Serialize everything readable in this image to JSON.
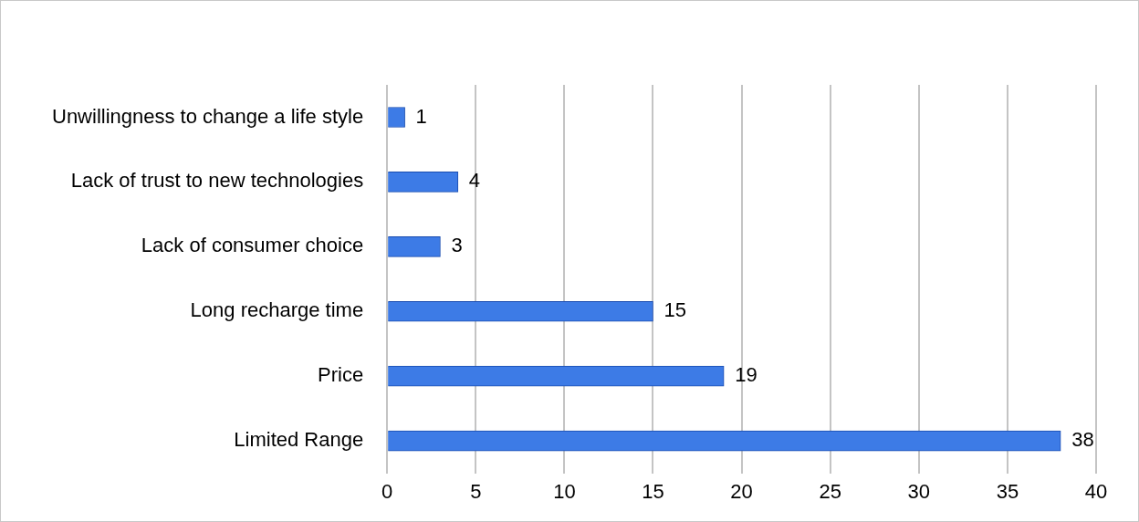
{
  "chart_data": {
    "type": "bar",
    "orientation": "horizontal",
    "categories": [
      "Unwillingness to change a life style",
      "Lack of trust to new technologies",
      "Lack of consumer choice",
      "Long recharge time",
      "Price",
      "Limited Range"
    ],
    "values": [
      1,
      4,
      3,
      15,
      19,
      38
    ],
    "color": "#3d7be6",
    "xlim": [
      0,
      40
    ],
    "xticks": [
      0,
      5,
      10,
      15,
      20,
      25,
      30,
      35,
      40
    ],
    "grid": "x",
    "data_labels": true
  }
}
